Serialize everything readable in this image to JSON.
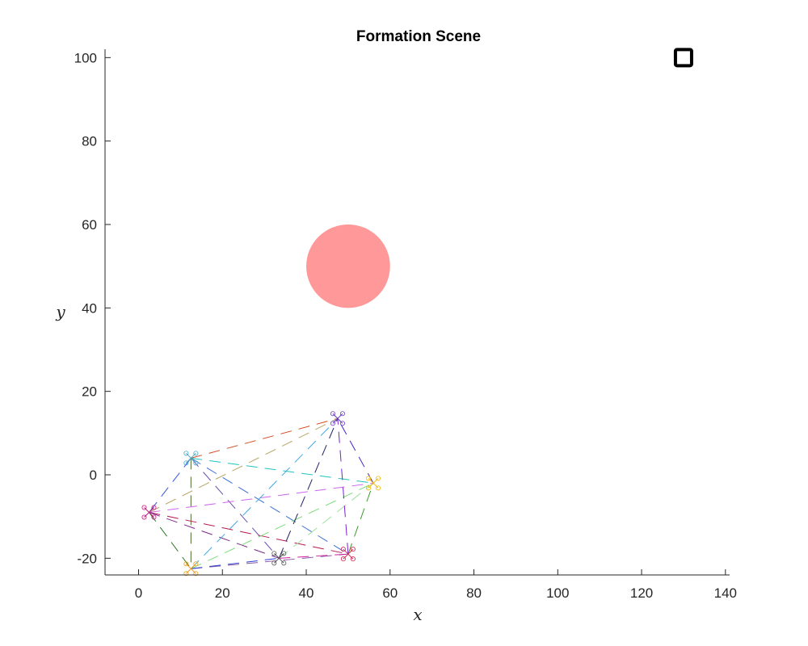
{
  "chart_data": {
    "type": "scatter",
    "title": "Formation Scene",
    "xlabel": "x",
    "ylabel": "y",
    "xlim": [
      -8,
      141
    ],
    "ylim": [
      -24,
      102
    ],
    "x_ticks": [
      "0",
      "20",
      "40",
      "60",
      "80",
      "100",
      "120",
      "140"
    ],
    "y_ticks": [
      "-20",
      "0",
      "20",
      "40",
      "60",
      "80",
      "100"
    ],
    "grid": false,
    "obstacle": {
      "shape": "circle",
      "center": [
        50,
        50
      ],
      "radius": 10,
      "color": "#ff9999"
    },
    "goal": {
      "shape": "square",
      "center": [
        130,
        100
      ],
      "color": "#000000"
    },
    "agents": [
      {
        "x": 47.5,
        "y": 13.5,
        "color": "#6a3dc9"
      },
      {
        "x": 56,
        "y": -2,
        "color": "#f5b800"
      },
      {
        "x": 50,
        "y": -19,
        "color": "#d6204e"
      },
      {
        "x": 33.5,
        "y": -20,
        "color": "#555555"
      },
      {
        "x": 12.5,
        "y": -22.5,
        "color": "#f0a020"
      },
      {
        "x": 2.5,
        "y": -9,
        "color": "#c2187a"
      },
      {
        "x": 12.5,
        "y": 4,
        "color": "#4aa8c8"
      }
    ],
    "edges": [
      {
        "from": 6,
        "to": 0,
        "color": "#d2461c"
      },
      {
        "from": 6,
        "to": 1,
        "color": "#1fc3c3"
      },
      {
        "from": 6,
        "to": 2,
        "color": "#3b6fd6"
      },
      {
        "from": 6,
        "to": 3,
        "color": "#6b4fb0"
      },
      {
        "from": 6,
        "to": 4,
        "color": "#4a6a2a"
      },
      {
        "from": 6,
        "to": 5,
        "color": "#2f55e0"
      },
      {
        "from": 5,
        "to": 0,
        "color": "#b9a86a"
      },
      {
        "from": 5,
        "to": 1,
        "color": "#cc66ee"
      },
      {
        "from": 5,
        "to": 2,
        "color": "#b8174f"
      },
      {
        "from": 5,
        "to": 3,
        "color": "#7a2a8a"
      },
      {
        "from": 5,
        "to": 4,
        "color": "#2a7a2a"
      },
      {
        "from": 4,
        "to": 0,
        "color": "#3ea9e6"
      },
      {
        "from": 4,
        "to": 1,
        "color": "#7bdc7b"
      },
      {
        "from": 4,
        "to": 2,
        "color": "#8c5aa6"
      },
      {
        "from": 4,
        "to": 3,
        "color": "#2b3fd0"
      },
      {
        "from": 3,
        "to": 0,
        "color": "#222266"
      },
      {
        "from": 3,
        "to": 1,
        "color": "#a0e0a0"
      },
      {
        "from": 3,
        "to": 2,
        "color": "#cc2299"
      },
      {
        "from": 2,
        "to": 0,
        "color": "#7a1fd0"
      },
      {
        "from": 2,
        "to": 1,
        "color": "#3a9a2a"
      },
      {
        "from": 1,
        "to": 0,
        "color": "#4a1fcc"
      }
    ]
  }
}
